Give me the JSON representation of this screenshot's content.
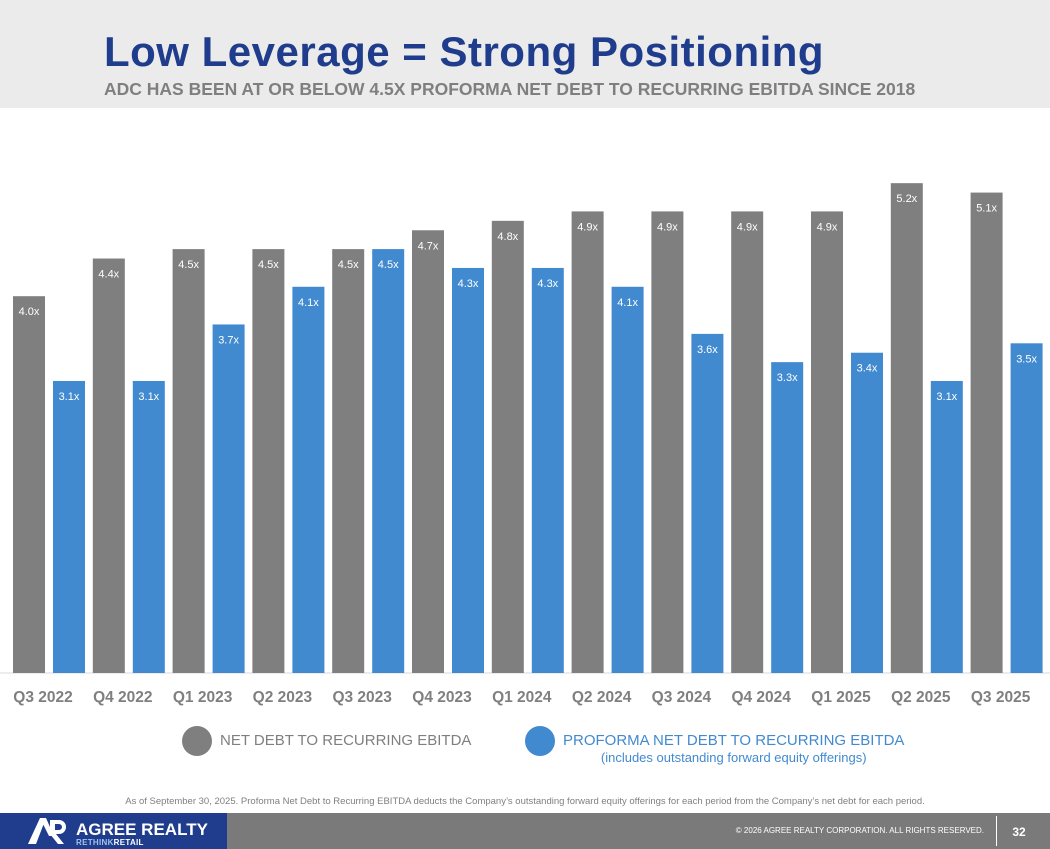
{
  "header": {
    "title": "Low Leverage = Strong Positioning",
    "subtitle": "ADC HAS BEEN AT OR BELOW 4.5X PROFORMA NET DEBT TO RECURRING EBITDA SINCE 2018"
  },
  "chart_data": {
    "type": "bar",
    "title": "",
    "xlabel": "",
    "ylabel": "",
    "ylim": [
      0,
      5.3
    ],
    "categories": [
      "Q3 2022",
      "Q4 2022",
      "Q1 2023",
      "Q2 2023",
      "Q3 2023",
      "Q4 2023",
      "Q1 2024",
      "Q2 2024",
      "Q3 2024",
      "Q4 2024",
      "Q1 2025",
      "Q2 2025",
      "Q3 2025"
    ],
    "series": [
      {
        "name": "NET DEBT TO RECURRING EBITDA",
        "color": "#7f7f7f",
        "values": [
          4.0,
          4.4,
          4.5,
          4.5,
          4.5,
          4.7,
          4.8,
          4.9,
          4.9,
          4.9,
          4.9,
          5.2,
          5.1
        ],
        "labels": [
          "4.0x",
          "4.4x",
          "4.5x",
          "4.5x",
          "4.5x",
          "4.7x",
          "4.8x",
          "4.9x",
          "4.9x",
          "4.9x",
          "4.9x",
          "5.2x",
          "5.1x"
        ]
      },
      {
        "name": "PROFORMA NET DEBT TO RECURRING EBITDA",
        "color": "#418ad0",
        "values": [
          3.1,
          3.1,
          3.7,
          4.1,
          4.5,
          4.3,
          4.3,
          4.1,
          3.6,
          3.3,
          3.4,
          3.1,
          3.5
        ],
        "labels": [
          "3.1x",
          "3.1x",
          "3.7x",
          "4.1x",
          "4.5x",
          "4.3x",
          "4.3x",
          "4.1x",
          "3.6x",
          "3.3x",
          "3.4x",
          "3.1x",
          "3.5x"
        ]
      }
    ],
    "grid": false,
    "legend": "bottom"
  },
  "legend": {
    "net_label": "NET DEBT TO RECURRING EBITDA",
    "proforma_label": "PROFORMA NET DEBT TO RECURRING EBITDA",
    "proforma_sublabel": "(includes outstanding forward equity offerings)"
  },
  "footnote": "As of September 30, 2025. Proforma Net Debt to Recurring EBITDA deducts the Company’s outstanding forward equity offerings for each period from the Company’s net debt for each period.",
  "footer": {
    "company": "AGREE REALTY",
    "tagline_a": "RETHINK",
    "tagline_b": "RETAIL",
    "copyright": "© 2026 AGREE REALTY CORPORATION. ALL RIGHTS RESERVED.",
    "page_number": "32"
  },
  "colors": {
    "navy": "#1f3d8c",
    "gray_bar": "#7f7f7f",
    "blue_bar": "#418ad0",
    "footer_gray": "#7a7a7a"
  }
}
